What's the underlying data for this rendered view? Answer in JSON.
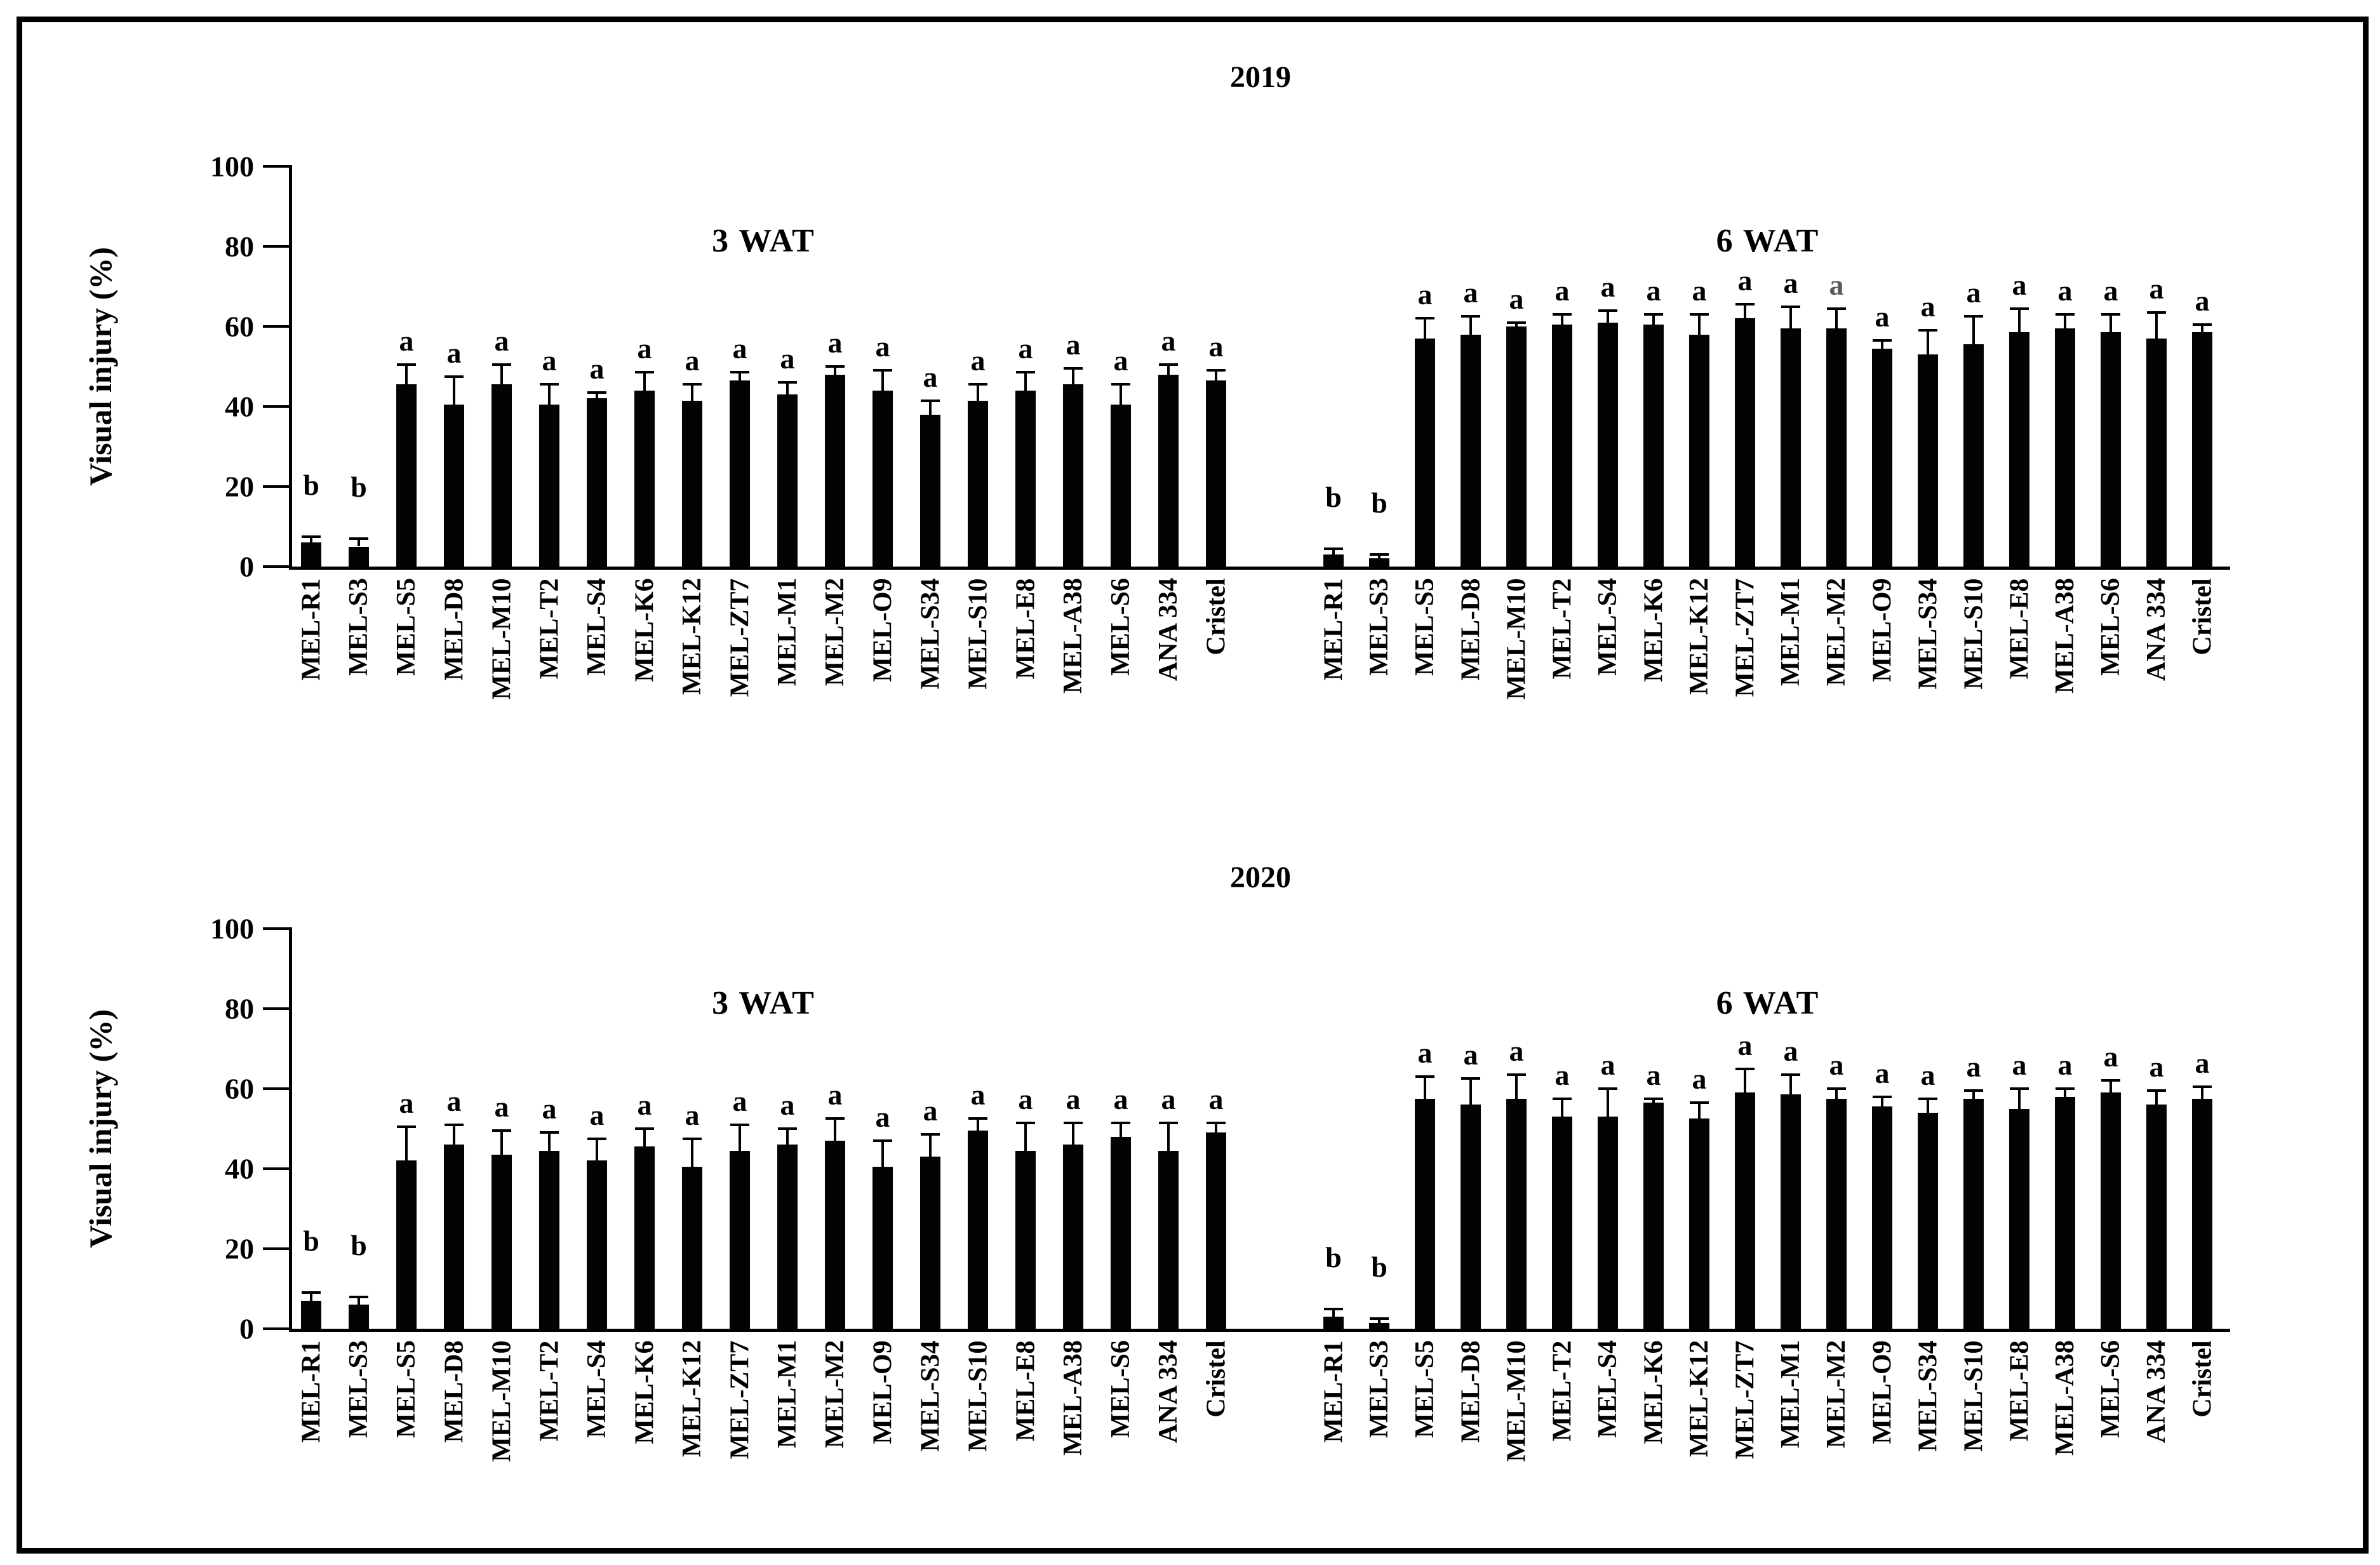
{
  "figure": {
    "background": "#ffffff",
    "frame_color": "#000000",
    "bar_color": "#030303",
    "muted_letter_color": "#5a5a5a",
    "ylabel": "Visual injury (%)"
  },
  "chart_data": [
    {
      "type": "bar",
      "title": "2019",
      "ylabel": "Visual injury (%)",
      "ylim": [
        0,
        100
      ],
      "yticks": [
        0,
        20,
        40,
        60,
        80,
        100
      ],
      "grid": false,
      "legend": false,
      "categories": [
        "MEL-R1",
        "MEL-S3",
        "MEL-S5",
        "MEL-D8",
        "MEL-M10",
        "MEL-T2",
        "MEL-S4",
        "MEL-K6",
        "MEL-K12",
        "MEL-ZT7",
        "MEL-M1",
        "MEL-M2",
        "MEL-O9",
        "MEL-S34",
        "MEL-S10",
        "MEL-E8",
        "MEL-A38",
        "MEL-S6",
        "ANA 334",
        "Cristel"
      ],
      "groups": [
        {
          "label": "3 WAT",
          "values": [
            6,
            5,
            45.5,
            40.5,
            45.5,
            40.5,
            42,
            44,
            41.5,
            46.5,
            43,
            48,
            44,
            38,
            41.5,
            44,
            45.5,
            40.5,
            48,
            46.5
          ],
          "err_caps": [
            7.5,
            7,
            50.5,
            47.5,
            50.5,
            45.5,
            43.5,
            48.5,
            45.5,
            48.5,
            46,
            50,
            49,
            41.5,
            45.5,
            48.5,
            49.5,
            45.5,
            50.5,
            49
          ],
          "letters": [
            "b",
            "b",
            "a",
            "a",
            "a",
            "a",
            "a",
            "a",
            "a",
            "a",
            "a",
            "a",
            "a",
            "a",
            "a",
            "a",
            "a",
            "a",
            "a",
            "a"
          ],
          "muted_letters": []
        },
        {
          "label": "6 WAT",
          "values": [
            3,
            2,
            57,
            58,
            60,
            60.5,
            61,
            60.5,
            58,
            62,
            59.5,
            59.5,
            54.5,
            53,
            55.5,
            58.5,
            59.5,
            58.5,
            57,
            58.5
          ],
          "err_caps": [
            4.5,
            3,
            62,
            62.5,
            61,
            63,
            64,
            63,
            63,
            65.5,
            65,
            64.5,
            56.5,
            59,
            62.5,
            64.5,
            63,
            63,
            63.5,
            60.5
          ],
          "letters": [
            "b",
            "b",
            "a",
            "a",
            "a",
            "a",
            "a",
            "a",
            "a",
            "a",
            "a",
            "a",
            "a",
            "a",
            "a",
            "a",
            "a",
            "a",
            "a",
            "a"
          ],
          "muted_letters": [
            11
          ]
        }
      ]
    },
    {
      "type": "bar",
      "title": "2020",
      "ylabel": "Visual injury (%)",
      "ylim": [
        0,
        100
      ],
      "yticks": [
        0,
        20,
        40,
        60,
        80,
        100
      ],
      "grid": false,
      "legend": false,
      "categories": [
        "MEL-R1",
        "MEL-S3",
        "MEL-S5",
        "MEL-D8",
        "MEL-M10",
        "MEL-T2",
        "MEL-S4",
        "MEL-K6",
        "MEL-K12",
        "MEL-ZT7",
        "MEL-M1",
        "MEL-M2",
        "MEL-O9",
        "MEL-S34",
        "MEL-S10",
        "MEL-E8",
        "MEL-A38",
        "MEL-S6",
        "ANA 334",
        "Cristel"
      ],
      "groups": [
        {
          "label": "3 WAT",
          "values": [
            7,
            6,
            42,
            46,
            43.5,
            44.5,
            42,
            45.5,
            40.5,
            44.5,
            46,
            47,
            40.5,
            43,
            49.5,
            44.5,
            46,
            48,
            44.5,
            49
          ],
          "err_caps": [
            9,
            8,
            50.5,
            51,
            49.5,
            49,
            47.5,
            50,
            47.5,
            51,
            50,
            52.5,
            47,
            48.5,
            52.5,
            51.5,
            51.5,
            51.5,
            51.5,
            51.5
          ],
          "letters": [
            "b",
            "b",
            "a",
            "a",
            "a",
            "a",
            "a",
            "a",
            "a",
            "a",
            "a",
            "a",
            "a",
            "a",
            "a",
            "a",
            "a",
            "a",
            "a",
            "a"
          ],
          "muted_letters": []
        },
        {
          "label": "6 WAT",
          "values": [
            3,
            1.5,
            57.5,
            56,
            57.5,
            53,
            53,
            56.5,
            52.5,
            59,
            58.5,
            57.5,
            55.5,
            54,
            57.5,
            55,
            58,
            59,
            56,
            57.5
          ],
          "err_caps": [
            5,
            2.5,
            63,
            62.5,
            63.5,
            57.5,
            60,
            57.5,
            56.5,
            65,
            63.5,
            60,
            58,
            57.5,
            59.5,
            60,
            60,
            62,
            59.5,
            60.5
          ],
          "letters": [
            "b",
            "b",
            "a",
            "a",
            "a",
            "a",
            "a",
            "a",
            "a",
            "a",
            "a",
            "a",
            "a",
            "a",
            "a",
            "a",
            "a",
            "a",
            "a",
            "a"
          ],
          "muted_letters": []
        }
      ]
    }
  ]
}
